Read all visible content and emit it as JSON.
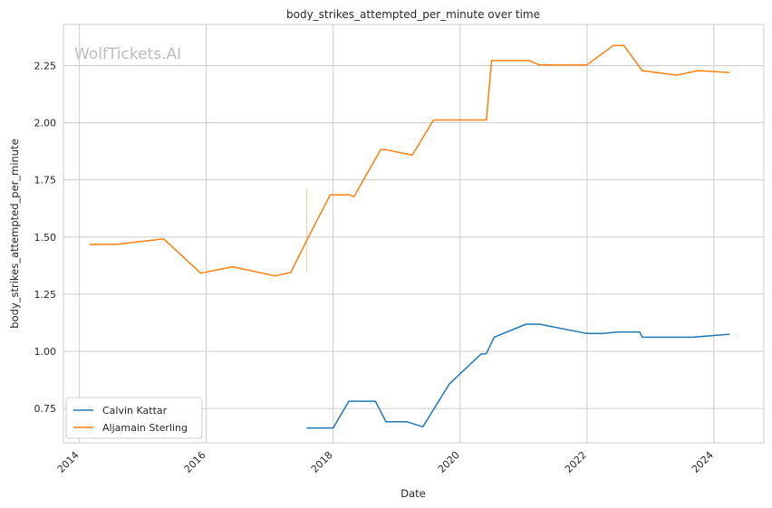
{
  "chart_data": {
    "type": "line",
    "title": "body_strikes_attempted_per_minute over time",
    "xlabel": "Date",
    "ylabel": "body_strikes_attempted_per_minute",
    "watermark": "WolfTickets.AI",
    "xlim": [
      "2013-10-01",
      "2024-10-15"
    ],
    "ylim": [
      0.6,
      2.43
    ],
    "x_ticks": [
      "2014",
      "2016",
      "2018",
      "2020",
      "2022",
      "2024"
    ],
    "y_ticks": [
      "0.75",
      "1.00",
      "1.25",
      "1.50",
      "1.75",
      "2.00",
      "2.25"
    ],
    "grid": true,
    "legend_position": "lower-left",
    "series": [
      {
        "name": "Calvin Kattar",
        "color": "#1f77b4",
        "points": [
          [
            "2017-08-01",
            0.665
          ],
          [
            "2018-01-01",
            0.665
          ],
          [
            "2018-04-01",
            0.782
          ],
          [
            "2018-09-01",
            0.782
          ],
          [
            "2018-11-01",
            0.692
          ],
          [
            "2019-03-01",
            0.692
          ],
          [
            "2019-06-01",
            0.67
          ],
          [
            "2019-11-01",
            0.858
          ],
          [
            "2020-05-01",
            0.988
          ],
          [
            "2020-06-01",
            0.99
          ],
          [
            "2020-07-15",
            1.062
          ],
          [
            "2021-01-15",
            1.119
          ],
          [
            "2021-04-01",
            1.119
          ],
          [
            "2022-01-01",
            1.078
          ],
          [
            "2022-04-01",
            1.078
          ],
          [
            "2022-07-01",
            1.085
          ],
          [
            "2022-11-01",
            1.085
          ],
          [
            "2022-11-15",
            1.062
          ],
          [
            "2023-09-01",
            1.062
          ],
          [
            "2024-04-01",
            1.075
          ]
        ]
      },
      {
        "name": "Aljamain Sterling",
        "color": "#ff7f0e",
        "points": [
          [
            "2014-03-01",
            1.468
          ],
          [
            "2014-08-01",
            1.468
          ],
          [
            "2015-05-01",
            1.492
          ],
          [
            "2015-12-01",
            1.342
          ],
          [
            "2016-06-01",
            1.37
          ],
          [
            "2017-02-01",
            1.33
          ],
          [
            "2017-05-01",
            1.345
          ],
          [
            "2017-09-01",
            1.53
          ],
          [
            "2017-12-15",
            1.685
          ],
          [
            "2018-04-01",
            1.685
          ],
          [
            "2018-05-01",
            1.677
          ],
          [
            "2018-10-01",
            1.882
          ],
          [
            "2018-11-01",
            1.882
          ],
          [
            "2019-04-01",
            1.858
          ],
          [
            "2019-08-01",
            2.012
          ],
          [
            "2020-06-01",
            2.012
          ],
          [
            "2020-07-01",
            2.272
          ],
          [
            "2021-02-01",
            2.272
          ],
          [
            "2021-04-01",
            2.253
          ],
          [
            "2022-01-01",
            2.253
          ],
          [
            "2022-06-01",
            2.338
          ],
          [
            "2022-08-01",
            2.338
          ],
          [
            "2022-11-15",
            2.228
          ],
          [
            "2023-06-01",
            2.208
          ],
          [
            "2023-10-01",
            2.228
          ],
          [
            "2024-04-01",
            2.22
          ]
        ]
      }
    ],
    "annotations": [
      {
        "type": "vertical-line",
        "x": "2017-08-01",
        "y_from": 1.345,
        "y_to": 1.71,
        "color": "#ff7f0e"
      }
    ]
  }
}
